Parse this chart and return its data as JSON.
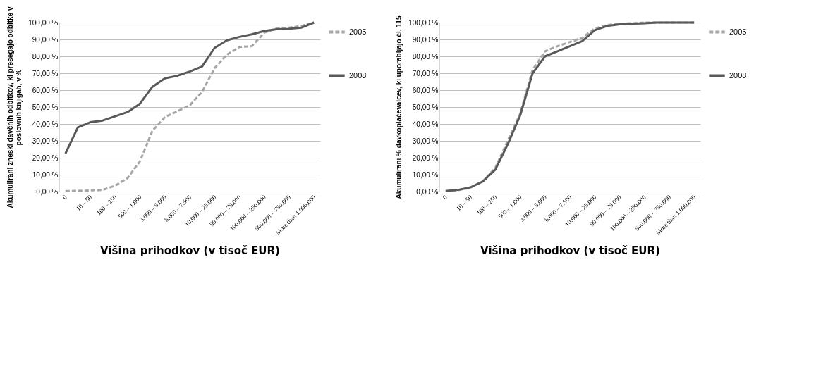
{
  "chart_data": [
    {
      "type": "line",
      "ylabel": "Akumulirani zneski davčnih odbitkov, ki presegajo odbitke v poslovnih knjigah, v %",
      "xlabel": "Višina prihodkov (v tisoč EUR)",
      "categories": [
        "0",
        null,
        "10 – 50",
        null,
        "100 – 250",
        null,
        "500 – 1.000",
        null,
        "3.000 – 5.000",
        null,
        "6.000 – 7.500",
        null,
        "10.000 – 25.000",
        null,
        "50.000 – 75.000",
        null,
        "100.000 – 250.000",
        null,
        "500.000 – 750.000",
        null,
        "More than 1.000.000"
      ],
      "series": [
        {
          "name": "2005",
          "color": "#a6a6a6",
          "line_style": "dashed",
          "values": [
            0.3,
            0.4,
            0.7,
            1,
            3.5,
            8,
            18,
            36,
            44,
            47.5,
            51,
            59,
            73,
            81,
            85.5,
            86,
            94,
            96.5,
            97,
            98,
            100
          ]
        },
        {
          "name": "2008",
          "color": "#595959",
          "line_style": "solid",
          "values": [
            22.5,
            38,
            41,
            42,
            44.5,
            47,
            52,
            62,
            67,
            68.5,
            71,
            74,
            85,
            89.5,
            91.5,
            93,
            95,
            96,
            96.3,
            97,
            100
          ]
        }
      ],
      "ylim": [
        0,
        100
      ],
      "yticks": [
        {
          "value": 0,
          "label": "0,00 %"
        },
        {
          "value": 10,
          "label": "10,00 %"
        },
        {
          "value": 20,
          "label": "20,00 %"
        },
        {
          "value": 30,
          "label": "30,00 %"
        },
        {
          "value": 40,
          "label": "40,00 %"
        },
        {
          "value": 50,
          "label": "50,00 %"
        },
        {
          "value": 60,
          "label": "60,00 %"
        },
        {
          "value": 70,
          "label": "70,00 %"
        },
        {
          "value": 80,
          "label": "80,00 %"
        },
        {
          "value": 90,
          "label": "90,00 %"
        },
        {
          "value": 100,
          "label": "100,00 %"
        }
      ],
      "grid": "y",
      "legend": "right"
    },
    {
      "type": "line",
      "ylabel": "Akumulirani % davkoplačevalcev, ki uporabljajo čl. 115",
      "xlabel": "Višina prihodkov (v tisoč EUR)",
      "categories": [
        "0",
        null,
        "10 – 50",
        null,
        "100 – 250",
        null,
        "500 – 1.000",
        null,
        "3.000 – 5.000",
        null,
        "6.000 – 7.500",
        null,
        "10.000 – 25.000",
        null,
        "50.000 – 75.000",
        null,
        "100.000 – 250.000",
        null,
        "500.000 – 750.000",
        null,
        "More than 1.000.000"
      ],
      "series": [
        {
          "name": "2005",
          "color": "#a6a6a6",
          "line_style": "dashed",
          "values": [
            0.2,
            0.8,
            2.3,
            6,
            14,
            30,
            46,
            72,
            83,
            86,
            88.5,
            91,
            96.5,
            98.5,
            99.3,
            99.6,
            100,
            100,
            100,
            100,
            100
          ]
        },
        {
          "name": "2008",
          "color": "#595959",
          "line_style": "solid",
          "values": [
            0.3,
            1,
            2.5,
            6,
            13,
            28,
            45,
            70,
            80,
            83,
            86,
            89,
            95.5,
            98,
            99,
            99.3,
            99.6,
            100,
            100,
            100,
            100
          ]
        }
      ],
      "ylim": [
        0,
        100
      ],
      "yticks": [
        {
          "value": 0,
          "label": "0,00 %"
        },
        {
          "value": 10,
          "label": "10,00 %"
        },
        {
          "value": 20,
          "label": "20,00 %"
        },
        {
          "value": 30,
          "label": "30,00 %"
        },
        {
          "value": 40,
          "label": "40,00 %"
        },
        {
          "value": 50,
          "label": "50,00 %"
        },
        {
          "value": 60,
          "label": "60,00 %"
        },
        {
          "value": 70,
          "label": "70,00 %"
        },
        {
          "value": 80,
          "label": "80,00 %"
        },
        {
          "value": 90,
          "label": "90,00 %"
        },
        {
          "value": 100,
          "label": "100,00 %"
        }
      ],
      "grid": "y",
      "legend": "right"
    }
  ]
}
